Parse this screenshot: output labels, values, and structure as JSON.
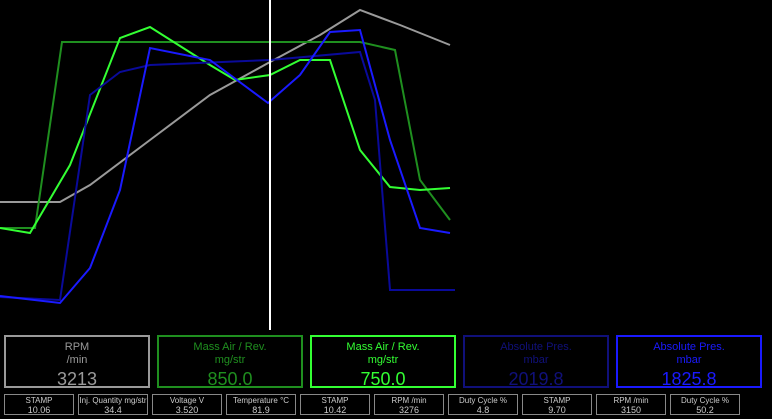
{
  "chart_data": {
    "type": "line",
    "xlim": [
      0,
      455
    ],
    "ylim": [
      0,
      330
    ],
    "series": [
      {
        "color": "#9a9a9a",
        "x": [
          0,
          60,
          90,
          150,
          210,
          270,
          320,
          360,
          400,
          450
        ],
        "values": [
          128,
          128,
          145,
          190,
          235,
          268,
          295,
          320,
          305,
          285
        ]
      },
      {
        "color": "#1f8f1f",
        "x": [
          0,
          35,
          62,
          360,
          395,
          420,
          450
        ],
        "values": [
          102,
          102,
          288,
          288,
          280,
          150,
          110
        ]
      },
      {
        "color": "#33ff33",
        "x": [
          0,
          30,
          70,
          120,
          150,
          210,
          235,
          270,
          300,
          330,
          360,
          390,
          420,
          450
        ],
        "values": [
          102,
          97,
          165,
          292,
          303,
          265,
          250,
          255,
          270,
          270,
          180,
          143,
          140,
          142
        ]
      },
      {
        "color": "#0a0a9a",
        "x": [
          0,
          60,
          90,
          120,
          150,
          270,
          360,
          375,
          390,
          455
        ],
        "values": [
          33,
          30,
          235,
          258,
          265,
          270,
          278,
          230,
          40,
          40
        ]
      },
      {
        "color": "#1a1aff",
        "x": [
          0,
          60,
          90,
          120,
          150,
          210,
          268,
          300,
          330,
          360,
          390,
          420,
          450
        ],
        "values": [
          34,
          27,
          62,
          140,
          282,
          270,
          227,
          255,
          298,
          300,
          190,
          102,
          97
        ]
      }
    ]
  },
  "gauges": [
    {
      "label": "RPM",
      "unit": "/min",
      "value": "3213",
      "color": "#9a9a9a"
    },
    {
      "label": "Mass Air / Rev.",
      "unit": "mg/str",
      "value": "850.0",
      "color": "#1f8f1f"
    },
    {
      "label": "Mass Air / Rev.",
      "unit": "mg/str",
      "value": "750.0",
      "color": "#33ff33"
    },
    {
      "label": "Absolute Pres.",
      "unit": "mbar",
      "value": "2019.8",
      "color": "#10107a"
    },
    {
      "label": "Absolute Pres.",
      "unit": "mbar",
      "value": "1825.8",
      "color": "#1a1aff"
    }
  ],
  "readouts": [
    {
      "label": "STAMP",
      "value": "10.06"
    },
    {
      "label": "Inj. Quantity mg/str",
      "value": "34.4"
    },
    {
      "label": "Voltage V",
      "value": "3.520"
    },
    {
      "label": "Temperature °C",
      "value": "81.9"
    },
    {
      "label": "STAMP",
      "value": "10.42"
    },
    {
      "label": "RPM /min",
      "value": "3276"
    },
    {
      "label": "Duty Cycle %",
      "value": "4.8"
    },
    {
      "label": "STAMP",
      "value": "9.70"
    },
    {
      "label": "RPM /min",
      "value": "3150"
    },
    {
      "label": "Duty Cycle %",
      "value": "50.2"
    }
  ]
}
